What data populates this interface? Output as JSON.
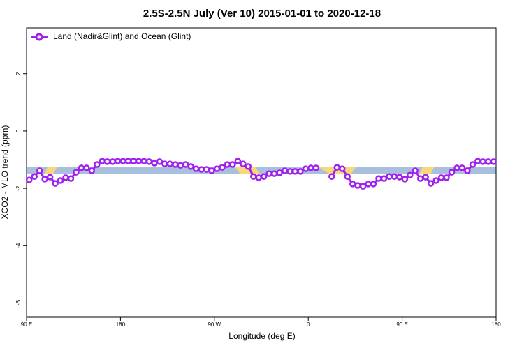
{
  "chart_data": {
    "type": "line",
    "title": "2.5S-2.5N July (Ver 10)   2015-01-01 to 2020-12-18",
    "x_label": "Longitude (deg E)",
    "y_label": "XCO2 - MLO trend (ppm)",
    "x": [
      92.5,
      97.5,
      102.5,
      107.5,
      112.5,
      117.5,
      122.5,
      127.5,
      132.5,
      137.5,
      142.5,
      147.5,
      152.5,
      157.5,
      162.5,
      167.5,
      172.5,
      177.5,
      182.5,
      187.5,
      192.5,
      197.5,
      202.5,
      207.5,
      212.5,
      217.5,
      222.5,
      227.5,
      232.5,
      237.5,
      242.5,
      247.5,
      252.5,
      257.5,
      262.5,
      267.5,
      272.5,
      277.5,
      282.5,
      287.5,
      292.5,
      297.5,
      302.5,
      307.5,
      312.5,
      317.5,
      322.5,
      327.5,
      332.5,
      337.5,
      342.5,
      347.5,
      352.5,
      357.5,
      362.5,
      367.5,
      372.5,
      377.5,
      382.5,
      387.5,
      392.5,
      397.5,
      402.5,
      407.5,
      412.5,
      417.5,
      422.5,
      427.5,
      432.5,
      437.5,
      442.5,
      447.5,
      452.5,
      457.5,
      462.5,
      467.5,
      472.5,
      477.5,
      482.5,
      487.5,
      492.5,
      497.5,
      502.5,
      507.5,
      512.5,
      517.5,
      522.5,
      527.5,
      532.5,
      537.5
    ],
    "series": [
      {
        "name": "Land (Nadir&Glint) and Ocean (Glint)",
        "color": "#a020f0",
        "values": [
          -1.71,
          -1.59,
          -1.39,
          -1.68,
          -1.61,
          -1.83,
          -1.73,
          -1.63,
          -1.66,
          -1.44,
          -1.29,
          -1.29,
          -1.39,
          -1.17,
          -1.05,
          -1.07,
          -1.07,
          -1.05,
          -1.05,
          -1.05,
          -1.05,
          -1.05,
          -1.05,
          -1.07,
          -1.12,
          -1.07,
          -1.15,
          -1.15,
          -1.17,
          -1.2,
          -1.17,
          -1.24,
          -1.32,
          -1.34,
          -1.34,
          -1.39,
          -1.32,
          -1.27,
          -1.17,
          -1.17,
          -1.05,
          -1.15,
          -1.24,
          -1.59,
          -1.63,
          -1.59,
          -1.49,
          -1.49,
          -1.46,
          -1.39,
          -1.41,
          -1.41,
          -1.41,
          -1.32,
          -1.29,
          -1.29,
          null,
          null,
          -1.59,
          -1.27,
          -1.32,
          -1.59,
          -1.85,
          -1.9,
          -1.93,
          -1.85,
          -1.85,
          -1.66,
          -1.66,
          -1.59,
          -1.59,
          -1.61,
          -1.68,
          -1.54,
          -1.39,
          -1.66,
          -1.61,
          -1.83,
          -1.73,
          -1.63,
          -1.63,
          -1.44,
          -1.29,
          -1.29,
          -1.39,
          -1.17,
          -1.05,
          -1.07,
          -1.07,
          -1.07
        ]
      }
    ],
    "xlim": [
      90,
      540
    ],
    "xticks": [
      {
        "value": 90,
        "label": "90 E"
      },
      {
        "value": 180,
        "label": "180"
      },
      {
        "value": 270,
        "label": "90 W"
      },
      {
        "value": 360,
        "label": "0"
      },
      {
        "value": 450,
        "label": "90 E"
      },
      {
        "value": 540,
        "label": "180"
      }
    ],
    "ylim": [
      -6.5,
      3.6
    ],
    "yticks": [
      2,
      0,
      -2,
      -4,
      -6
    ],
    "legend": "top-left"
  }
}
